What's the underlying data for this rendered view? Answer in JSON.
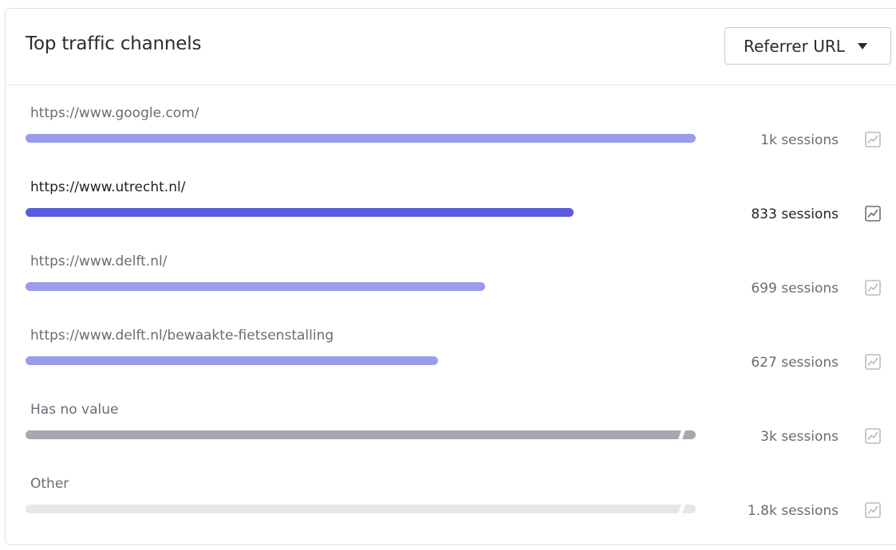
{
  "header": {
    "title": "Top traffic channels",
    "dropdown": {
      "selected": "Referrer URL",
      "icon": "caret-down-icon"
    }
  },
  "colors": {
    "bar_default": "#9b9ce9",
    "bar_active": "#5b5ddc",
    "bar_no_value": "#a5a8ae",
    "bar_other": "#e6e7ea"
  },
  "rows": [
    {
      "label": "https://www.google.com/",
      "value": "1k sessions",
      "fraction": 1.0,
      "style": "default",
      "broken": false,
      "active": false,
      "icon": "trend-chart-icon"
    },
    {
      "label": "https://www.utrecht.nl/",
      "value": "833 sessions",
      "fraction": 0.818,
      "style": "active",
      "broken": false,
      "active": true,
      "icon": "trend-chart-icon"
    },
    {
      "label": "https://www.delft.nl/",
      "value": "699 sessions",
      "fraction": 0.686,
      "style": "default",
      "broken": false,
      "active": false,
      "icon": "trend-chart-icon"
    },
    {
      "label": "https://www.delft.nl/bewaakte-fietsenstalling",
      "value": "627 sessions",
      "fraction": 0.616,
      "style": "default",
      "broken": false,
      "active": false,
      "icon": "trend-chart-icon"
    },
    {
      "label": "Has no value",
      "value": "3k sessions",
      "fraction": 1.0,
      "style": "no_value",
      "broken": true,
      "active": false,
      "icon": "trend-chart-icon"
    },
    {
      "label": "Other",
      "value": "1.8k sessions",
      "fraction": 1.0,
      "style": "other",
      "broken": true,
      "active": false,
      "icon": "trend-chart-icon"
    }
  ]
}
